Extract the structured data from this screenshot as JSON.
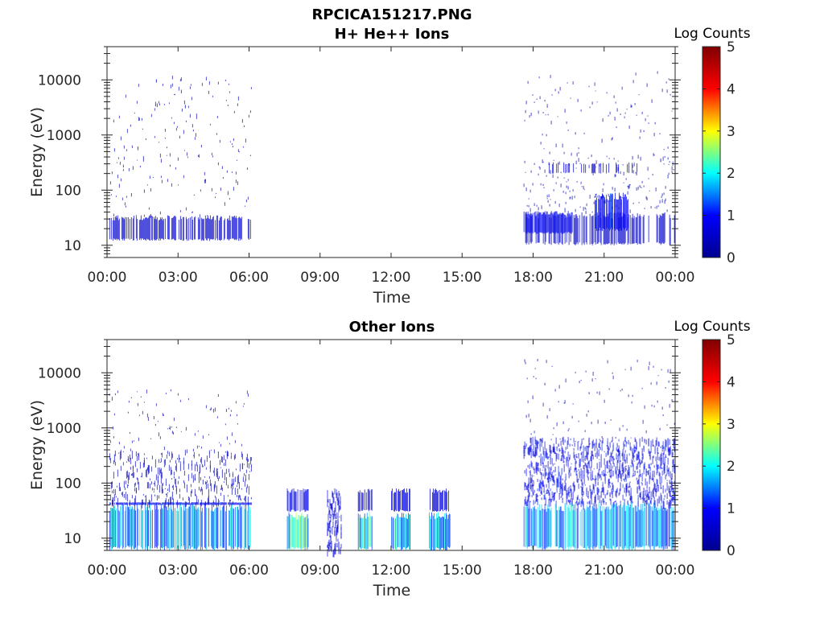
{
  "figure": {
    "file_title": "RPCICA151217.PNG"
  },
  "colormap": {
    "name": "jet",
    "stops": [
      "#00008f",
      "#0000ff",
      "#00ffff",
      "#ffff00",
      "#ff0000",
      "#800000"
    ]
  },
  "chart_data": [
    {
      "type": "heatmap",
      "title": "H+ He++ Ions",
      "xlabel": "Time",
      "ylabel": "Energy (eV)",
      "x_ticks": [
        "00:00",
        "03:00",
        "06:00",
        "09:00",
        "12:00",
        "15:00",
        "18:00",
        "21:00",
        "00:00"
      ],
      "x_range_hours": [
        0,
        24
      ],
      "y_scale": "log",
      "y_range_eV": [
        6,
        40000
      ],
      "y_ticks": [
        {
          "value": 10,
          "label": "10"
        },
        {
          "value": 100,
          "label": "100"
        },
        {
          "value": 1000,
          "label": "1000"
        },
        {
          "value": 10000,
          "label": "10000"
        }
      ],
      "colorbar": {
        "label": "Log Counts",
        "range": [
          0,
          5
        ],
        "ticks": [
          "0",
          "1",
          "2",
          "3",
          "4",
          "5"
        ]
      },
      "grid": false,
      "regions": [
        {
          "start_hour": 0.1,
          "end_hour": 6.1,
          "energy_min_eV": 12,
          "energy_max_eV": 35,
          "log_counts": 0.5,
          "density": 0.7
        },
        {
          "start_hour": 0.1,
          "end_hour": 6.1,
          "energy_min_eV": 35,
          "energy_max_eV": 12000,
          "log_counts": 0.3,
          "density": 0.04
        },
        {
          "start_hour": 17.6,
          "end_hour": 24.0,
          "energy_min_eV": 10,
          "energy_max_eV": 40,
          "log_counts": 0.5,
          "density": 0.55
        },
        {
          "start_hour": 17.6,
          "end_hour": 19.7,
          "energy_min_eV": 16,
          "energy_max_eV": 42,
          "log_counts": 0.8,
          "density": 0.85
        },
        {
          "start_hour": 20.6,
          "end_hour": 22.0,
          "energy_min_eV": 18,
          "energy_max_eV": 90,
          "log_counts": 0.9,
          "density": 0.8
        },
        {
          "start_hour": 17.6,
          "end_hour": 24.0,
          "energy_min_eV": 40,
          "energy_max_eV": 500,
          "log_counts": 0.4,
          "density": 0.12
        },
        {
          "start_hour": 18.5,
          "end_hour": 22.5,
          "energy_min_eV": 200,
          "energy_max_eV": 320,
          "log_counts": 0.6,
          "density": 0.25
        },
        {
          "start_hour": 17.6,
          "end_hour": 24.0,
          "energy_min_eV": 500,
          "energy_max_eV": 15000,
          "log_counts": 0.3,
          "density": 0.04
        }
      ]
    },
    {
      "type": "heatmap",
      "title": "Other Ions",
      "xlabel": "Time",
      "ylabel": "Energy (eV)",
      "x_ticks": [
        "00:00",
        "03:00",
        "06:00",
        "09:00",
        "12:00",
        "15:00",
        "18:00",
        "21:00",
        "00:00"
      ],
      "x_range_hours": [
        0,
        24
      ],
      "y_scale": "log",
      "y_range_eV": [
        6,
        40000
      ],
      "y_ticks": [
        {
          "value": 10,
          "label": "10"
        },
        {
          "value": 100,
          "label": "100"
        },
        {
          "value": 1000,
          "label": "1000"
        },
        {
          "value": 10000,
          "label": "10000"
        }
      ],
      "colorbar": {
        "label": "Log Counts",
        "range": [
          0,
          5
        ],
        "ticks": [
          "0",
          "1",
          "2",
          "3",
          "4",
          "5"
        ]
      },
      "grid": false,
      "regions": [
        {
          "start_hour": 0.1,
          "end_hour": 6.1,
          "energy_min_eV": 6,
          "energy_max_eV": 45,
          "log_counts": 1.5,
          "density": 0.8
        },
        {
          "start_hour": 0.1,
          "end_hour": 6.1,
          "energy_min_eV": 40,
          "energy_max_eV": 45,
          "log_counts": 0.9,
          "density": 0.9
        },
        {
          "start_hour": 0.1,
          "end_hour": 6.1,
          "energy_min_eV": 45,
          "energy_max_eV": 400,
          "log_counts": 0.4,
          "density": 0.25
        },
        {
          "start_hour": 0.1,
          "end_hour": 6.1,
          "energy_min_eV": 400,
          "energy_max_eV": 5000,
          "log_counts": 0.3,
          "density": 0.03
        },
        {
          "start_hour": 7.6,
          "end_hour": 8.5,
          "energy_min_eV": 6,
          "energy_max_eV": 30,
          "log_counts": 2.1,
          "density": 1.0
        },
        {
          "start_hour": 7.6,
          "end_hour": 8.5,
          "energy_min_eV": 30,
          "energy_max_eV": 80,
          "log_counts": 0.8,
          "density": 0.7
        },
        {
          "start_hour": 9.3,
          "end_hour": 9.9,
          "energy_min_eV": 6,
          "energy_max_eV": 80,
          "log_counts": 0.7,
          "density": 0.7
        },
        {
          "start_hour": 10.6,
          "end_hour": 11.2,
          "energy_min_eV": 6,
          "energy_max_eV": 30,
          "log_counts": 1.8,
          "density": 1.0
        },
        {
          "start_hour": 10.6,
          "end_hour": 11.2,
          "energy_min_eV": 30,
          "energy_max_eV": 80,
          "log_counts": 0.6,
          "density": 0.7
        },
        {
          "start_hour": 12.0,
          "end_hour": 12.8,
          "energy_min_eV": 6,
          "energy_max_eV": 30,
          "log_counts": 1.7,
          "density": 1.0
        },
        {
          "start_hour": 12.0,
          "end_hour": 12.8,
          "energy_min_eV": 30,
          "energy_max_eV": 80,
          "log_counts": 0.7,
          "density": 0.7
        },
        {
          "start_hour": 13.6,
          "end_hour": 14.5,
          "energy_min_eV": 6,
          "energy_max_eV": 30,
          "log_counts": 1.6,
          "density": 1.0
        },
        {
          "start_hour": 13.6,
          "end_hour": 14.5,
          "energy_min_eV": 30,
          "energy_max_eV": 80,
          "log_counts": 0.6,
          "density": 0.7
        },
        {
          "start_hour": 17.6,
          "end_hour": 24.0,
          "energy_min_eV": 6,
          "energy_max_eV": 45,
          "log_counts": 1.6,
          "density": 0.85
        },
        {
          "start_hour": 17.6,
          "end_hour": 24.0,
          "energy_min_eV": 45,
          "energy_max_eV": 700,
          "log_counts": 0.8,
          "density": 0.55
        },
        {
          "start_hour": 17.6,
          "end_hour": 24.0,
          "energy_min_eV": 700,
          "energy_max_eV": 18000,
          "log_counts": 0.3,
          "density": 0.06
        }
      ]
    }
  ]
}
